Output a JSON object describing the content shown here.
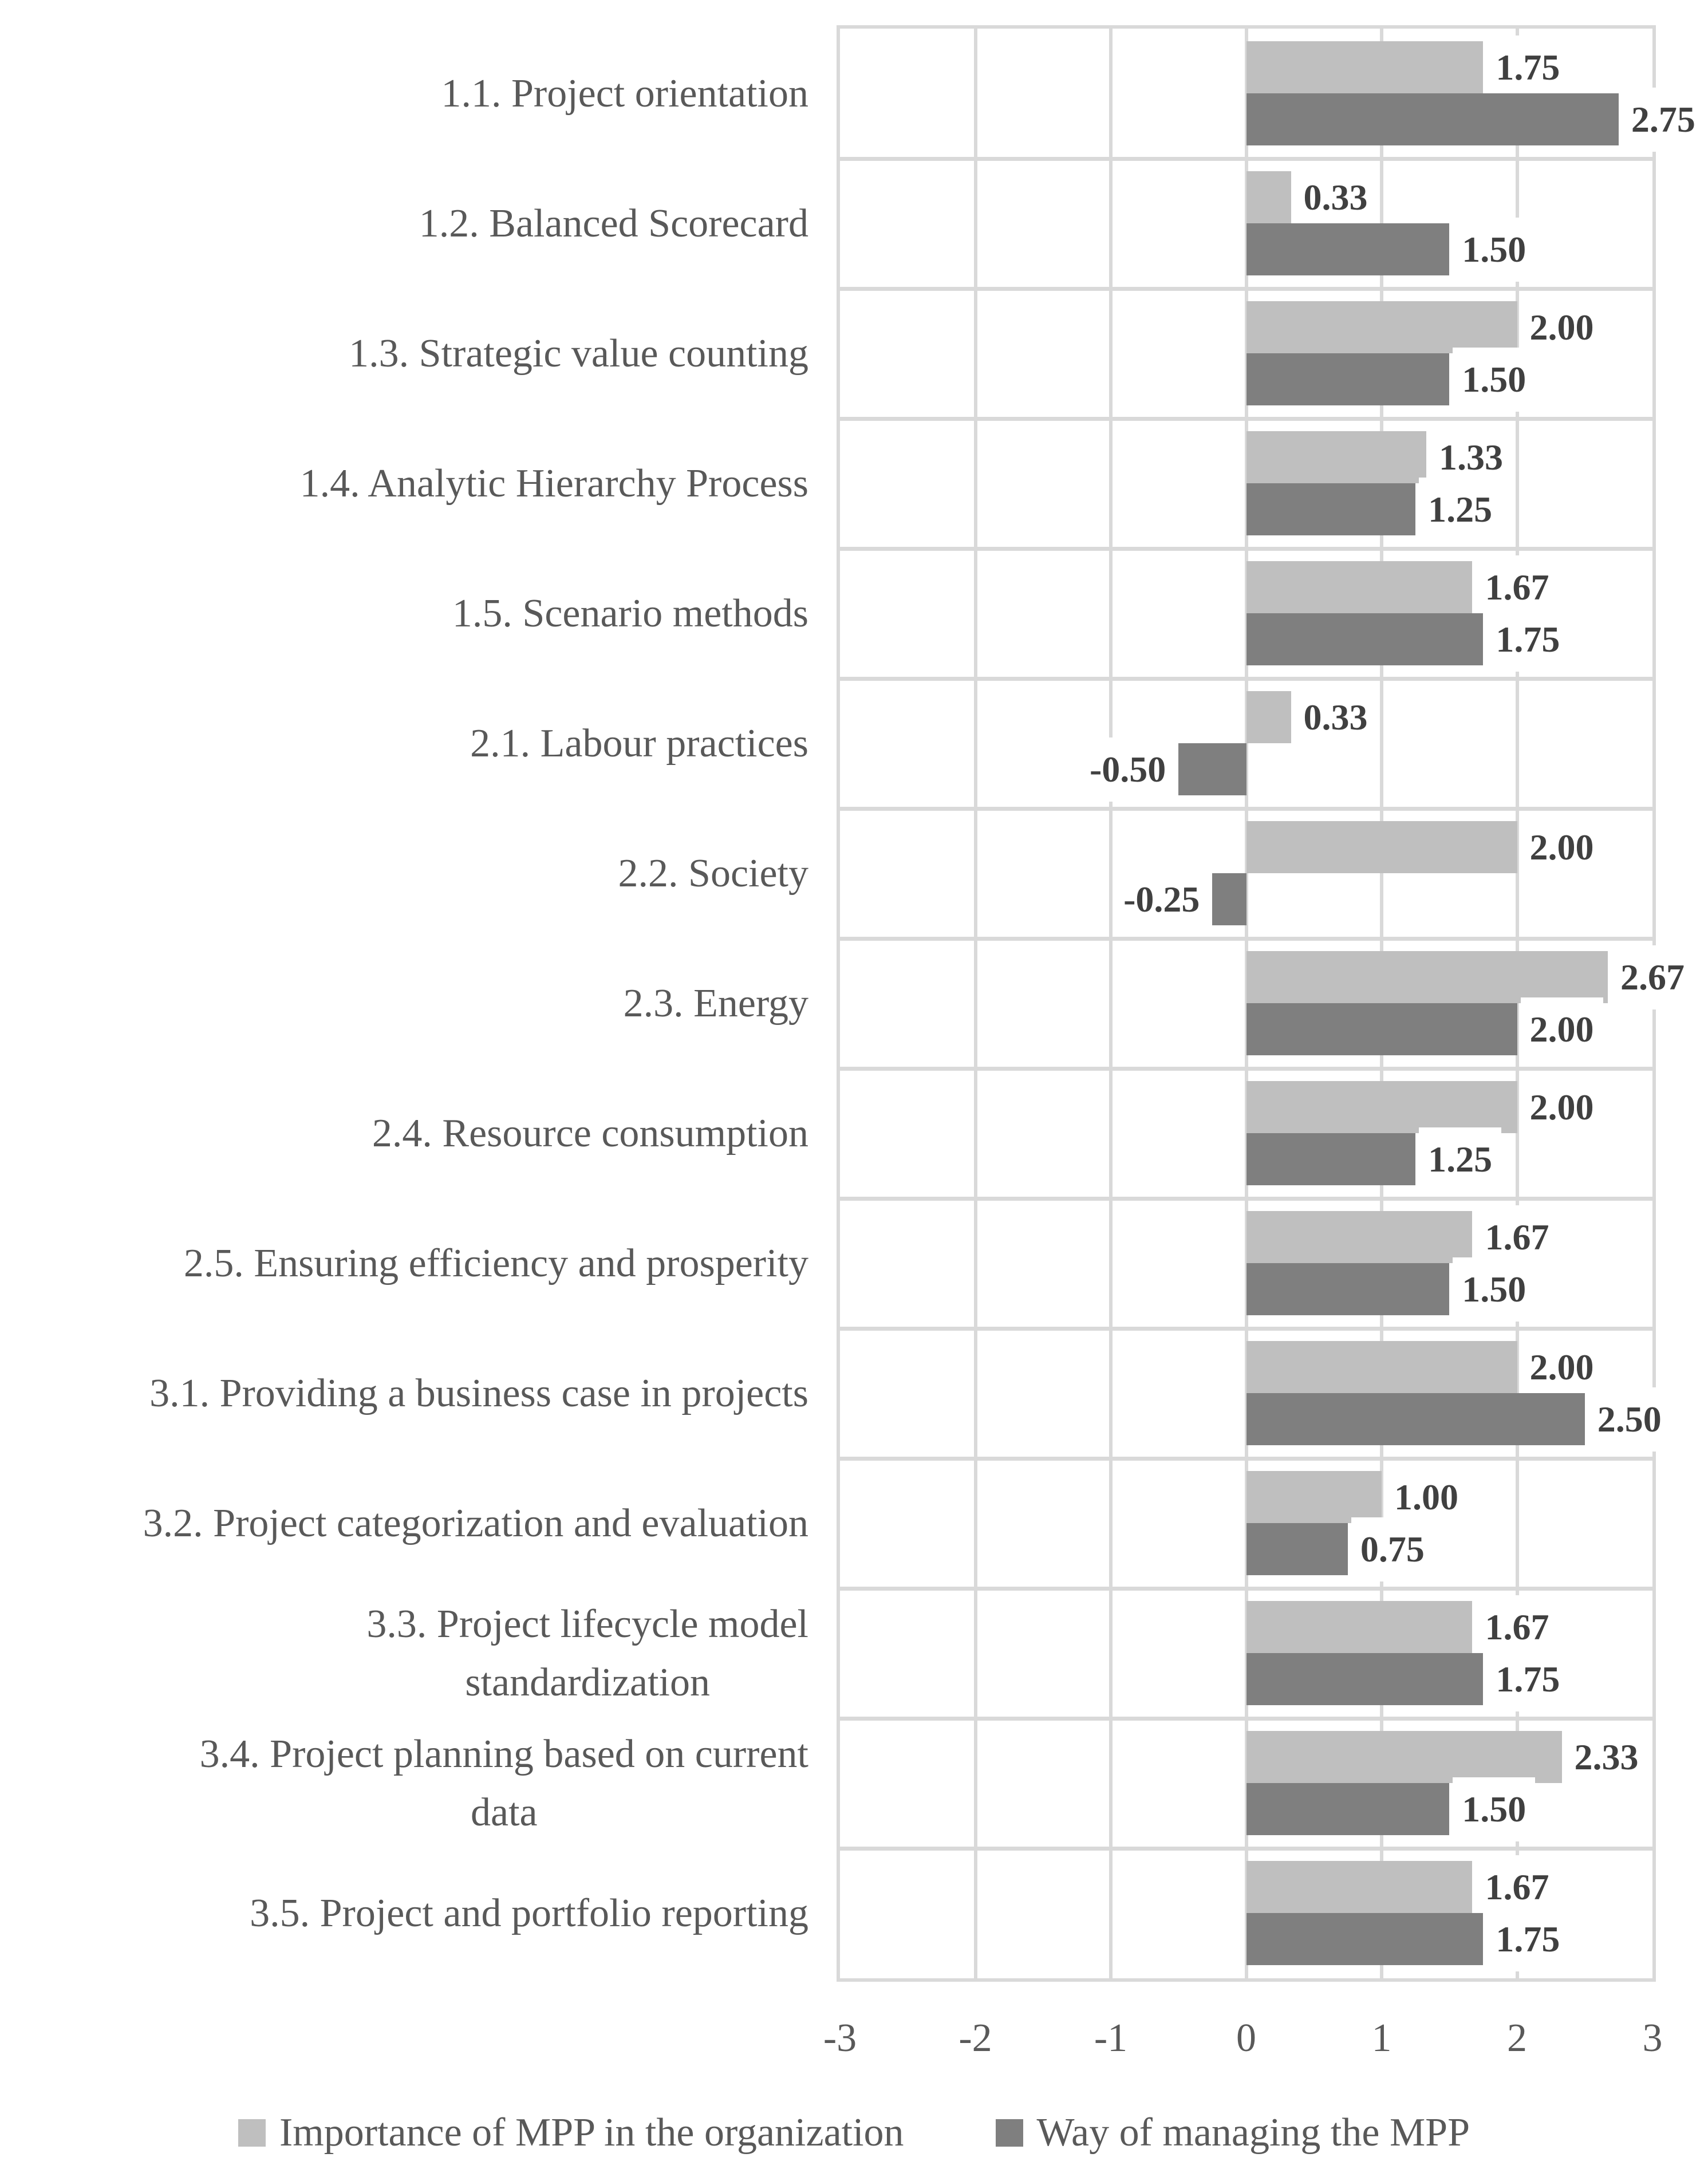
{
  "chart_data": {
    "type": "bar",
    "orientation": "horizontal",
    "title": "",
    "categories": [
      "1.1. Project orientation",
      "1.2. Balanced Scorecard",
      "1.3. Strategic value counting",
      "1.4. Analytic Hierarchy Process",
      "1.5. Scenario methods",
      "2.1. Labour practices",
      "2.2. Society",
      "2.3. Energy",
      "2.4. Resource consumption",
      "2.5. Ensuring efficiency and prosperity",
      "3.1. Providing a business case in projects",
      "3.2. Project categorization and evaluation",
      "3.3. Project lifecycle model\nstandardization",
      "3.4. Project planning based on current\ndata",
      "3.5. Project and portfolio reporting"
    ],
    "series": [
      {
        "name": "Importance of MPP in the organization",
        "color": "#bfbfbf",
        "values": [
          1.75,
          0.33,
          2.0,
          1.33,
          1.67,
          0.33,
          2.0,
          2.67,
          2.0,
          1.67,
          2.0,
          1.0,
          1.67,
          2.33,
          1.67
        ]
      },
      {
        "name": "Way of managing the MPP",
        "color": "#7f7f7f",
        "values": [
          2.75,
          1.5,
          1.5,
          1.25,
          1.75,
          -0.5,
          -0.25,
          2.0,
          1.25,
          1.5,
          2.5,
          0.75,
          1.75,
          1.5,
          1.75
        ]
      }
    ],
    "xlim": [
      -3,
      3
    ],
    "x_ticks": [
      "-3",
      "-2",
      "-1",
      "0",
      "1",
      "2",
      "3"
    ],
    "grid": true,
    "legend_position": "bottom",
    "value_labels": "outside bar ends, two decimals"
  },
  "colors": {
    "grid": "#d9d9d9",
    "value_label_text": "#404040",
    "axis_text": "#595959",
    "background": "#ffffff"
  }
}
